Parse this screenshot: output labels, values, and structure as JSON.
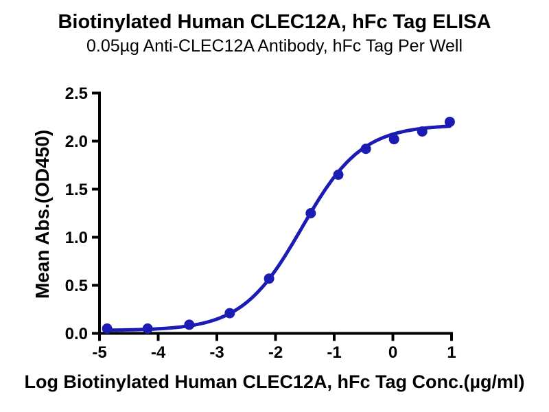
{
  "chart_data": {
    "type": "scatter",
    "title": "Biotinylated Human CLEC12A, hFc Tag ELISA",
    "subtitle": "0.05µg Anti-CLEC12A Antibody, hFc Tag Per Well",
    "xlabel": "Log Biotinylated Human CLEC12A, hFc Tag Conc.(µg/ml)",
    "ylabel": "Mean Abs.(OD450)",
    "xlim": [
      -5,
      1
    ],
    "ylim": [
      0,
      2.5
    ],
    "x_tick_values": [
      -5,
      -4,
      -3,
      -2,
      -1,
      0,
      1
    ],
    "x_tick_labels": [
      "-5",
      "-4",
      "-3",
      "-2",
      "-1",
      "0",
      "1"
    ],
    "y_tick_values": [
      0,
      0.5,
      1,
      1.5,
      2,
      2.5
    ],
    "y_tick_labels": [
      "0.0",
      "0.5",
      "1.0",
      "1.5",
      "2.0",
      "2.5"
    ],
    "grid": false,
    "legend": "none",
    "colors": {
      "series": "#1c1cb4",
      "axis": "#000000"
    },
    "series": [
      {
        "marker": "circle",
        "points": [
          {
            "x": -4.87,
            "y": 0.05
          },
          {
            "x": -4.18,
            "y": 0.05
          },
          {
            "x": -3.47,
            "y": 0.09
          },
          {
            "x": -2.78,
            "y": 0.21
          },
          {
            "x": -2.11,
            "y": 0.57
          },
          {
            "x": -1.4,
            "y": 1.25
          },
          {
            "x": -0.93,
            "y": 1.65
          },
          {
            "x": -0.46,
            "y": 1.92
          },
          {
            "x": 0.02,
            "y": 2.02
          },
          {
            "x": 0.5,
            "y": 2.1
          },
          {
            "x": 0.97,
            "y": 2.2
          }
        ]
      }
    ],
    "fit_curve": {
      "model": "4PL",
      "bottom": 0.03,
      "top": 2.17,
      "log_ec50": -1.55,
      "hill": 0.85,
      "x_start": -4.87,
      "x_end": 0.97
    }
  }
}
